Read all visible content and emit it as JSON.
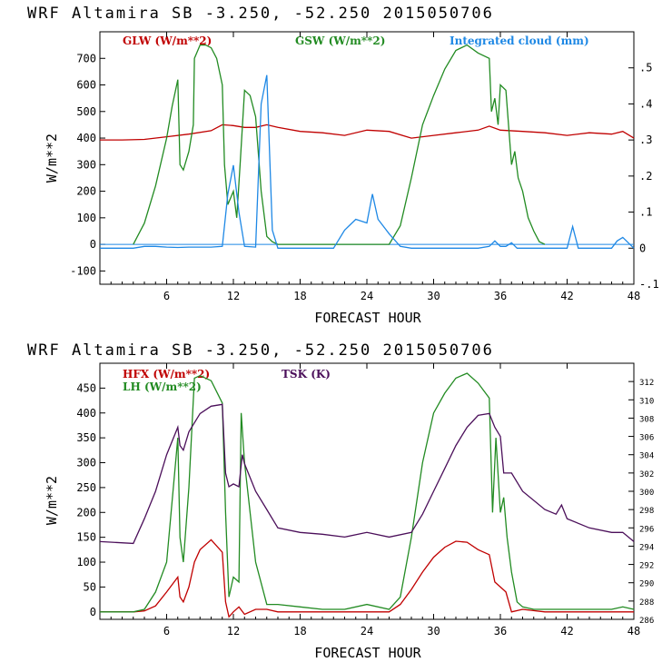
{
  "chart_data": [
    {
      "type": "line",
      "title": "WRF  Altamira  SB  -3.250, -52.250  2015050706",
      "xlabel": "FORECAST HOUR",
      "ylabel": "W/m**2",
      "xlim": [
        0,
        48
      ],
      "ylim": [
        -150,
        800
      ],
      "xticks": [
        6,
        12,
        18,
        24,
        30,
        36,
        42,
        48
      ],
      "yticks": [
        -100,
        0,
        100,
        200,
        300,
        400,
        500,
        600,
        700
      ],
      "y2lim": [
        -0.1,
        0.6
      ],
      "y2ticks": [
        -0.1,
        0,
        0.1,
        0.2,
        0.3,
        0.4,
        0.5
      ],
      "y2ticklabels": [
        "-.1",
        "0",
        ".1",
        ".2",
        ".3",
        ".4",
        ".5"
      ],
      "series": [
        {
          "name": "GLW (W/m**2)",
          "color": "#c00000",
          "axis": "left",
          "x": [
            0,
            2,
            4,
            6,
            8,
            10,
            11,
            12,
            13,
            14,
            15,
            16,
            18,
            20,
            22,
            24,
            26,
            28,
            30,
            32,
            34,
            35,
            36,
            38,
            40,
            42,
            44,
            46,
            47,
            48
          ],
          "values": [
            393,
            393,
            395,
            405,
            415,
            428,
            450,
            447,
            440,
            440,
            450,
            440,
            425,
            420,
            410,
            430,
            425,
            400,
            410,
            420,
            430,
            445,
            430,
            425,
            420,
            410,
            420,
            415,
            425,
            400
          ]
        },
        {
          "name": "GSW (W/m**2)",
          "color": "#228b22",
          "axis": "left",
          "x": [
            3,
            4,
            5,
            6,
            6.5,
            7,
            7.2,
            7.5,
            8,
            8.4,
            8.5,
            9,
            9.5,
            10,
            10.5,
            11,
            11.2,
            11.5,
            12,
            12.3,
            12.6,
            13,
            13.5,
            14,
            14.5,
            15,
            15.5,
            16,
            26,
            27,
            28,
            29,
            30,
            31,
            32,
            33,
            34,
            35,
            35.2,
            35.5,
            35.8,
            36,
            36.5,
            37,
            37.3,
            37.6,
            38,
            38.5,
            39,
            39.5,
            40
          ],
          "values": [
            0,
            80,
            220,
            400,
            520,
            620,
            300,
            280,
            350,
            450,
            700,
            750,
            750,
            740,
            700,
            600,
            300,
            150,
            200,
            100,
            300,
            580,
            560,
            480,
            200,
            30,
            10,
            0,
            0,
            70,
            250,
            450,
            560,
            660,
            730,
            750,
            720,
            700,
            500,
            550,
            450,
            600,
            580,
            300,
            350,
            250,
            200,
            100,
            50,
            10,
            0
          ]
        },
        {
          "name": "Integrated cloud (mm)",
          "color": "#1e88e5",
          "axis": "right",
          "x": [
            0,
            3,
            4,
            5,
            6,
            7,
            8,
            9,
            10,
            11,
            11.5,
            12,
            12.5,
            13,
            14,
            14.5,
            15,
            15.5,
            16,
            21,
            22,
            23,
            24,
            24.5,
            25,
            26,
            27,
            28,
            34,
            35,
            35.5,
            36,
            36.5,
            37,
            37.5,
            42,
            42.5,
            43,
            46,
            46.5,
            47,
            48
          ],
          "values": [
            0,
            0,
            0.005,
            0.005,
            0.003,
            0.002,
            0.003,
            0.003,
            0.003,
            0.005,
            0.15,
            0.23,
            0.1,
            0.005,
            0.003,
            0.4,
            0.48,
            0.05,
            0,
            0,
            0.05,
            0.08,
            0.07,
            0.15,
            0.08,
            0.04,
            0.005,
            0,
            0,
            0.005,
            0.02,
            0.005,
            0.005,
            0.015,
            0,
            0,
            0.06,
            0,
            0,
            0.02,
            0.03,
            0
          ]
        }
      ]
    },
    {
      "type": "line",
      "title": "WRF  Altamira  SB  -3.250, -52.250  2015050706",
      "xlabel": "FORECAST HOUR",
      "ylabel": "W/m**2",
      "xlim": [
        0,
        48
      ],
      "ylim": [
        -15,
        500
      ],
      "xticks": [
        6,
        12,
        18,
        24,
        30,
        36,
        42,
        48
      ],
      "yticks": [
        0,
        50,
        100,
        150,
        200,
        250,
        300,
        350,
        400,
        450
      ],
      "y2lim": [
        286,
        314
      ],
      "y2ticks": [
        286,
        288,
        290,
        292,
        294,
        296,
        298,
        300,
        302,
        304,
        306,
        308,
        310,
        312
      ],
      "series": [
        {
          "name": "HFX (W/m**2)",
          "color": "#c00000",
          "axis": "left",
          "x": [
            0,
            3,
            4,
            5,
            6,
            7,
            7.2,
            7.5,
            8,
            8.5,
            9,
            10,
            11,
            11.3,
            11.6,
            12,
            12.5,
            13,
            14,
            15,
            16,
            18,
            20,
            22,
            24,
            26,
            27,
            28,
            29,
            30,
            31,
            32,
            33,
            34,
            35,
            35.5,
            36,
            36.5,
            37,
            38,
            40,
            42,
            44,
            46,
            48
          ],
          "values": [
            0,
            0,
            2,
            12,
            40,
            70,
            30,
            20,
            50,
            100,
            125,
            145,
            120,
            20,
            -10,
            0,
            10,
            -5,
            5,
            5,
            0,
            0,
            0,
            0,
            0,
            0,
            15,
            45,
            80,
            110,
            130,
            142,
            140,
            125,
            115,
            60,
            50,
            40,
            0,
            5,
            0,
            0,
            0,
            0,
            0
          ]
        },
        {
          "name": "LH  (W/m**2)",
          "color": "#228b22",
          "axis": "left",
          "x": [
            0,
            3,
            4,
            5,
            6,
            7,
            7.2,
            7.5,
            8,
            8.5,
            9,
            10,
            11,
            11.3,
            11.6,
            12,
            12.5,
            12.7,
            13,
            13.5,
            14,
            15,
            16,
            18,
            20,
            22,
            24,
            26,
            27,
            28,
            29,
            30,
            31,
            32,
            33,
            34,
            35,
            35.3,
            35.6,
            36,
            36.3,
            36.6,
            37,
            37.5,
            38,
            39,
            40,
            42,
            44,
            46,
            47,
            48
          ],
          "values": [
            0,
            0,
            5,
            40,
            100,
            350,
            150,
            100,
            250,
            470,
            475,
            465,
            420,
            200,
            30,
            70,
            60,
            400,
            300,
            200,
            100,
            15,
            15,
            10,
            5,
            5,
            15,
            5,
            30,
            150,
            300,
            400,
            440,
            470,
            480,
            460,
            430,
            200,
            350,
            200,
            230,
            150,
            80,
            20,
            10,
            5,
            5,
            5,
            5,
            5,
            10,
            5
          ]
        },
        {
          "name": "TSK (K)",
          "color": "#4b0f5a",
          "axis": "right",
          "x": [
            0,
            3,
            4,
            5,
            6,
            7,
            7.2,
            7.5,
            8,
            9,
            10,
            11,
            11.3,
            11.6,
            12,
            12.5,
            12.8,
            13,
            14,
            15,
            16,
            18,
            20,
            22,
            24,
            26,
            28,
            29,
            30,
            31,
            32,
            33,
            34,
            35,
            35.5,
            36,
            36.3,
            37,
            38,
            40,
            41,
            41.5,
            42,
            44,
            46,
            47,
            48
          ],
          "values": [
            294.5,
            294.3,
            297,
            300,
            304,
            307,
            305,
            304.5,
            306.5,
            308.5,
            309.3,
            309.5,
            302,
            300.5,
            300.8,
            300.5,
            304,
            303,
            300,
            298,
            296,
            295.5,
            295.3,
            295,
            295.5,
            295,
            295.5,
            297.5,
            300,
            302.5,
            305,
            307,
            308.3,
            308.5,
            307,
            306,
            302,
            302,
            300,
            298,
            297.5,
            298.5,
            297,
            296,
            295.5,
            295.5,
            294.5
          ]
        }
      ]
    }
  ]
}
